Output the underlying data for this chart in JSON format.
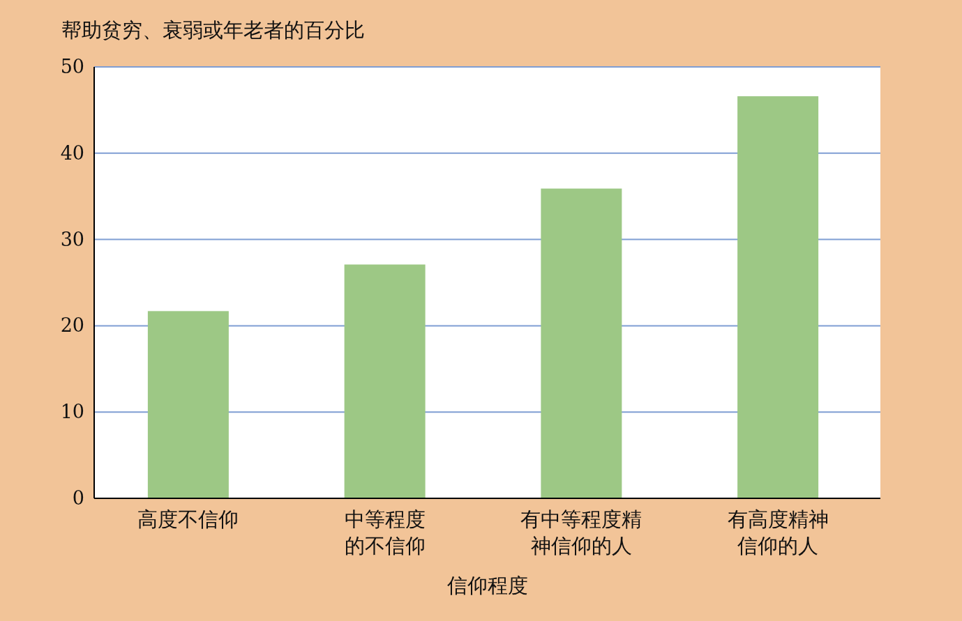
{
  "chart_data": {
    "type": "bar",
    "ylabel": "帮助贫穷、衰弱或年老者的百分比",
    "xlabel": "信仰程度",
    "categories": [
      "高度不信仰",
      "中等程度的不信仰",
      "有中等程度精神信仰的人",
      "有高度精神信仰的人"
    ],
    "values": [
      21.7,
      27.1,
      35.9,
      46.6
    ],
    "color": "#9dc885",
    "ylim": [
      0,
      50
    ],
    "yticks": [
      0,
      10,
      20,
      30,
      40,
      50
    ],
    "grid": "y"
  }
}
